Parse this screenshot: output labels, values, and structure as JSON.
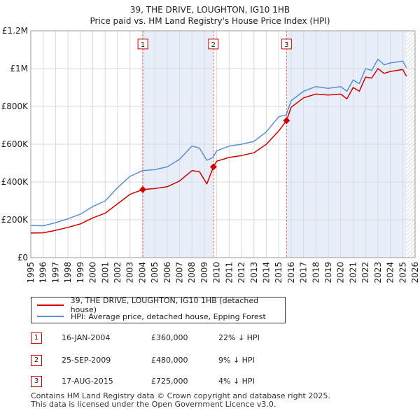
{
  "title": {
    "line1": "39, THE DRIVE, LOUGHTON, IG10 1HB",
    "line2": "Price paid vs. HM Land Registry's House Price Index (HPI)"
  },
  "colors": {
    "property": "#cc0000",
    "hpi": "#5b8fd0",
    "shade": "#e8eef9",
    "grid": "#d9d9d9",
    "marker_line": "#e07070"
  },
  "legend": {
    "property_label": "39, THE DRIVE, LOUGHTON, IG10 1HB (detached house)",
    "hpi_label": "HPI: Average price, detached house, Epping Forest"
  },
  "transactions": [
    {
      "num": "1",
      "date": "16-JAN-2004",
      "price": "£360,000",
      "hpi": "22% ↓ HPI"
    },
    {
      "num": "2",
      "date": "25-SEP-2009",
      "price": "£480,000",
      "hpi": "9% ↓ HPI"
    },
    {
      "num": "3",
      "date": "17-AUG-2015",
      "price": "£725,000",
      "hpi": "4% ↓ HPI"
    }
  ],
  "footer": {
    "line1": "Contains HM Land Registry data © Crown copyright and database right 2025.",
    "line2": "This data is licensed under the Open Government Licence v3.0."
  },
  "chart_data": {
    "type": "line",
    "xlim": [
      1995,
      2026
    ],
    "ylim": [
      0,
      1200000
    ],
    "yticks": [
      {
        "value": 0,
        "label": "£0"
      },
      {
        "value": 200000,
        "label": "£200K"
      },
      {
        "value": 400000,
        "label": "£400K"
      },
      {
        "value": 600000,
        "label": "£600K"
      },
      {
        "value": 800000,
        "label": "£800K"
      },
      {
        "value": 1000000,
        "label": "£1M"
      },
      {
        "value": 1200000,
        "label": "£1.2M"
      }
    ],
    "xticks": [
      1995,
      1996,
      1997,
      1998,
      1999,
      2000,
      2001,
      2002,
      2003,
      2004,
      2005,
      2006,
      2007,
      2008,
      2009,
      2010,
      2011,
      2012,
      2013,
      2014,
      2015,
      2016,
      2017,
      2018,
      2019,
      2020,
      2021,
      2022,
      2023,
      2024,
      2025,
      2026
    ],
    "shaded_ranges": [
      [
        2004.04,
        2009.73
      ],
      [
        2015.63,
        2025.3
      ]
    ],
    "hatched_from": 2025.3,
    "sales": [
      {
        "label": "1",
        "x": 2004.04,
        "y": 360000
      },
      {
        "label": "2",
        "x": 2009.73,
        "y": 480000
      },
      {
        "label": "3",
        "x": 2015.63,
        "y": 725000
      }
    ],
    "series": [
      {
        "name": "HPI: Average price, detached house, Epping Forest",
        "points": [
          [
            1995.0,
            170000
          ],
          [
            1996.0,
            168000
          ],
          [
            1997.0,
            185000
          ],
          [
            1998.0,
            205000
          ],
          [
            1999.0,
            230000
          ],
          [
            2000.0,
            270000
          ],
          [
            2001.0,
            300000
          ],
          [
            2002.0,
            370000
          ],
          [
            2003.0,
            430000
          ],
          [
            2004.0,
            460000
          ],
          [
            2005.0,
            465000
          ],
          [
            2006.0,
            480000
          ],
          [
            2007.0,
            520000
          ],
          [
            2008.0,
            590000
          ],
          [
            2008.6,
            580000
          ],
          [
            2009.2,
            515000
          ],
          [
            2009.7,
            530000
          ],
          [
            2010.0,
            565000
          ],
          [
            2011.0,
            590000
          ],
          [
            2012.0,
            600000
          ],
          [
            2013.0,
            615000
          ],
          [
            2014.0,
            665000
          ],
          [
            2015.0,
            745000
          ],
          [
            2015.6,
            755000
          ],
          [
            2016.0,
            830000
          ],
          [
            2017.0,
            880000
          ],
          [
            2018.0,
            905000
          ],
          [
            2019.0,
            895000
          ],
          [
            2020.0,
            905000
          ],
          [
            2020.5,
            880000
          ],
          [
            2021.0,
            940000
          ],
          [
            2021.5,
            920000
          ],
          [
            2022.0,
            1000000
          ],
          [
            2022.5,
            990000
          ],
          [
            2023.0,
            1050000
          ],
          [
            2023.5,
            1020000
          ],
          [
            2024.0,
            1030000
          ],
          [
            2024.5,
            1035000
          ],
          [
            2025.0,
            1040000
          ],
          [
            2025.3,
            1005000
          ]
        ]
      },
      {
        "name": "39, THE DRIVE, LOUGHTON, IG10 1HB (detached house)",
        "points": [
          [
            1995.0,
            130000
          ],
          [
            1996.0,
            131000
          ],
          [
            1997.0,
            144000
          ],
          [
            1998.0,
            160000
          ],
          [
            1999.0,
            178000
          ],
          [
            2000.0,
            210000
          ],
          [
            2001.0,
            235000
          ],
          [
            2002.0,
            285000
          ],
          [
            2003.0,
            335000
          ],
          [
            2004.04,
            360000
          ],
          [
            2005.0,
            365000
          ],
          [
            2006.0,
            375000
          ],
          [
            2007.0,
            405000
          ],
          [
            2008.0,
            460000
          ],
          [
            2008.6,
            455000
          ],
          [
            2009.2,
            390000
          ],
          [
            2009.73,
            480000
          ],
          [
            2010.0,
            510000
          ],
          [
            2011.0,
            530000
          ],
          [
            2012.0,
            540000
          ],
          [
            2013.0,
            555000
          ],
          [
            2014.0,
            600000
          ],
          [
            2015.0,
            670000
          ],
          [
            2015.63,
            725000
          ],
          [
            2016.0,
            795000
          ],
          [
            2017.0,
            845000
          ],
          [
            2018.0,
            865000
          ],
          [
            2019.0,
            860000
          ],
          [
            2020.0,
            865000
          ],
          [
            2020.5,
            840000
          ],
          [
            2021.0,
            900000
          ],
          [
            2021.5,
            880000
          ],
          [
            2022.0,
            955000
          ],
          [
            2022.5,
            950000
          ],
          [
            2023.0,
            1000000
          ],
          [
            2023.5,
            975000
          ],
          [
            2024.0,
            985000
          ],
          [
            2024.5,
            990000
          ],
          [
            2025.0,
            995000
          ],
          [
            2025.3,
            960000
          ]
        ]
      }
    ]
  }
}
